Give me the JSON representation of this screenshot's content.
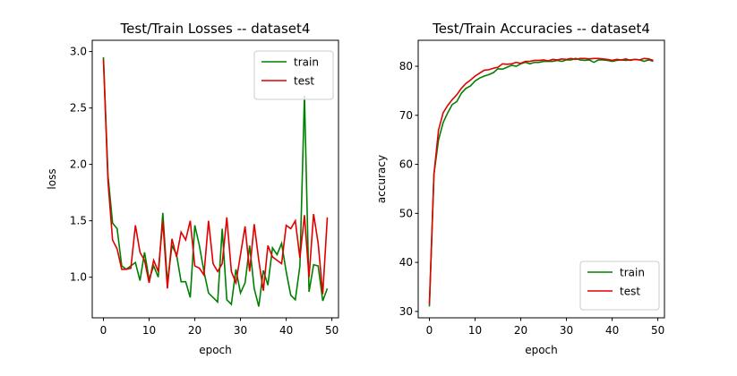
{
  "chart_data": [
    {
      "type": "line",
      "title": "Test/Train Losses -- dataset4",
      "xlabel": "epoch",
      "ylabel": "loss",
      "x": [
        0,
        1,
        2,
        3,
        4,
        5,
        6,
        7,
        8,
        9,
        10,
        11,
        12,
        13,
        14,
        15,
        16,
        17,
        18,
        19,
        20,
        21,
        22,
        23,
        24,
        25,
        26,
        27,
        28,
        29,
        30,
        31,
        32,
        33,
        34,
        35,
        36,
        37,
        38,
        39,
        40,
        41,
        42,
        43,
        44,
        45,
        46,
        47,
        48,
        49
      ],
      "series": [
        {
          "name": "train",
          "color": "#008000",
          "values": [
            2.95,
            1.9,
            1.48,
            1.43,
            1.1,
            1.07,
            1.1,
            1.13,
            0.97,
            1.22,
            0.98,
            1.1,
            1.0,
            1.57,
            0.95,
            1.28,
            1.2,
            0.96,
            0.96,
            0.82,
            1.46,
            1.28,
            1.05,
            0.86,
            0.82,
            0.78,
            1.43,
            0.8,
            0.76,
            1.07,
            0.86,
            0.95,
            1.28,
            0.9,
            0.74,
            1.06,
            0.93,
            1.26,
            1.2,
            1.3,
            1.05,
            0.84,
            0.8,
            1.1,
            2.61,
            0.87,
            1.11,
            1.1,
            0.79,
            0.9
          ]
        },
        {
          "name": "test",
          "color": "#e00000",
          "values": [
            2.93,
            1.85,
            1.33,
            1.25,
            1.07,
            1.07,
            1.08,
            1.46,
            1.22,
            1.15,
            0.95,
            1.15,
            1.05,
            1.5,
            0.9,
            1.34,
            1.18,
            1.4,
            1.33,
            1.5,
            1.1,
            1.08,
            1.02,
            1.5,
            1.12,
            1.05,
            1.12,
            1.53,
            1.05,
            0.95,
            1.2,
            1.45,
            1.05,
            1.47,
            1.15,
            0.88,
            1.28,
            1.18,
            1.15,
            1.12,
            1.46,
            1.43,
            1.5,
            1.17,
            1.55,
            1.0,
            1.56,
            1.3,
            0.85,
            1.53
          ]
        }
      ],
      "xlim": [
        -2.45,
        51.45
      ],
      "xticks": [
        0,
        10,
        20,
        30,
        40,
        50
      ],
      "ylim": [
        0.64,
        3.1
      ],
      "yticks": [
        {
          "value": 1,
          "label": "1.0"
        },
        1.5,
        {
          "value": 2,
          "label": "2.0"
        },
        2.5,
        {
          "value": 3,
          "label": "3.0"
        }
      ],
      "legend": "upper right"
    },
    {
      "type": "line",
      "title": "Test/Train Accuracies -- dataset4",
      "xlabel": "epoch",
      "ylabel": "accuracy",
      "x": [
        0,
        1,
        2,
        3,
        4,
        5,
        6,
        7,
        8,
        9,
        10,
        11,
        12,
        13,
        14,
        15,
        16,
        17,
        18,
        19,
        20,
        21,
        22,
        23,
        24,
        25,
        26,
        27,
        28,
        29,
        30,
        31,
        32,
        33,
        34,
        35,
        36,
        37,
        38,
        39,
        40,
        41,
        42,
        43,
        44,
        45,
        46,
        47,
        48,
        49
      ],
      "series": [
        {
          "name": "train",
          "color": "#008000",
          "values": [
            31,
            58,
            65,
            68.5,
            70.5,
            72.2,
            72.8,
            74.5,
            75.5,
            76,
            77,
            77.6,
            78,
            78.3,
            78.7,
            79.5,
            79.4,
            79.8,
            80.2,
            80,
            80.5,
            80.8,
            80.5,
            80.8,
            80.8,
            81,
            81,
            81,
            81.2,
            81,
            81.3,
            81.3,
            81.6,
            81.3,
            81.2,
            81.3,
            80.8,
            81.3,
            81.3,
            81.2,
            81,
            81.2,
            81.3,
            81.2,
            81.3,
            81.4,
            81.3,
            81,
            81.3,
            81
          ]
        },
        {
          "name": "test",
          "color": "#e00000",
          "values": [
            31.5,
            58,
            67,
            70.5,
            72,
            73.2,
            74.2,
            75.5,
            76.5,
            77.2,
            78,
            78.6,
            79.2,
            79.3,
            79.6,
            79.8,
            80.5,
            80.4,
            80.5,
            80.8,
            80.6,
            81,
            81,
            81.2,
            81.2,
            81.3,
            81.1,
            81.4,
            81.3,
            81.5,
            81.4,
            81.6,
            81.4,
            81.6,
            81.6,
            81.5,
            81.6,
            81.6,
            81.5,
            81.4,
            81.2,
            81.4,
            81.3,
            81.5,
            81.2,
            81.4,
            81.3,
            81.6,
            81.5,
            81.2
          ]
        }
      ],
      "xlim": [
        -2.45,
        51.45
      ],
      "xticks": [
        0,
        10,
        20,
        30,
        40,
        50
      ],
      "ylim": [
        28.7,
        85.3
      ],
      "yticks": [
        30,
        40,
        50,
        60,
        70,
        80
      ],
      "legend": "lower right"
    }
  ]
}
